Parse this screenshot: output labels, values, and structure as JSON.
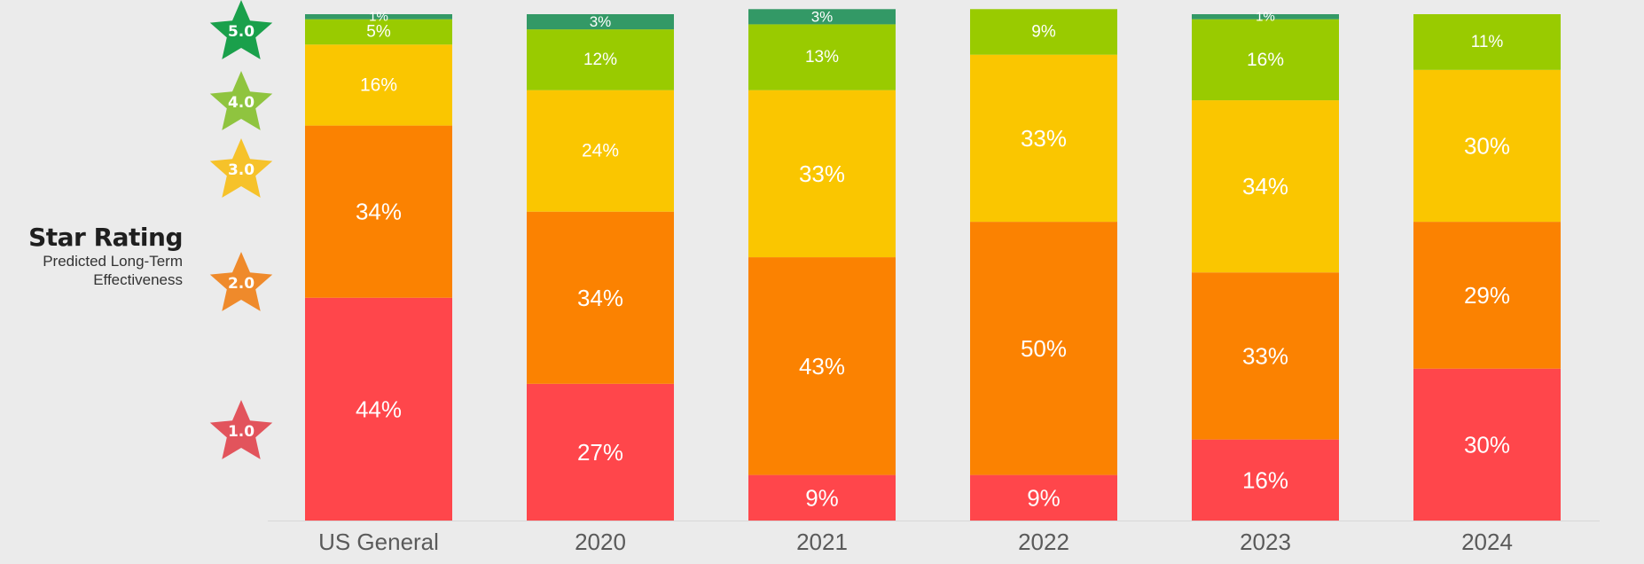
{
  "legend": {
    "title": "Star Rating",
    "subtitle_line1": "Predicted Long-Term",
    "subtitle_line2": "Effectiveness"
  },
  "chart_data": {
    "type": "bar",
    "stacked": true,
    "categories": [
      "US General",
      "2020",
      "2021",
      "2022",
      "2023",
      "2024"
    ],
    "series": [
      {
        "name": "1.0",
        "color": "#ff464b",
        "values": [
          44,
          27,
          9,
          9,
          16,
          30
        ]
      },
      {
        "name": "2.0",
        "color": "#fb8201",
        "values": [
          34,
          34,
          43,
          50,
          33,
          29
        ]
      },
      {
        "name": "3.0",
        "color": "#fac600",
        "values": [
          16,
          24,
          33,
          33,
          34,
          30
        ]
      },
      {
        "name": "4.0",
        "color": "#99cb00",
        "values": [
          5,
          12,
          13,
          9,
          16,
          11
        ]
      },
      {
        "name": "5.0",
        "color": "#339966",
        "values": [
          1,
          3,
          3,
          0,
          1,
          0
        ]
      }
    ],
    "star_colors": {
      "1.0": "#e2545c",
      "2.0": "#ef8a2b",
      "3.0": "#f6c22a",
      "4.0": "#8fc43f",
      "5.0": "#1aa04b"
    },
    "ylim": [
      0,
      100
    ],
    "grid": false,
    "legend_position": "left"
  }
}
